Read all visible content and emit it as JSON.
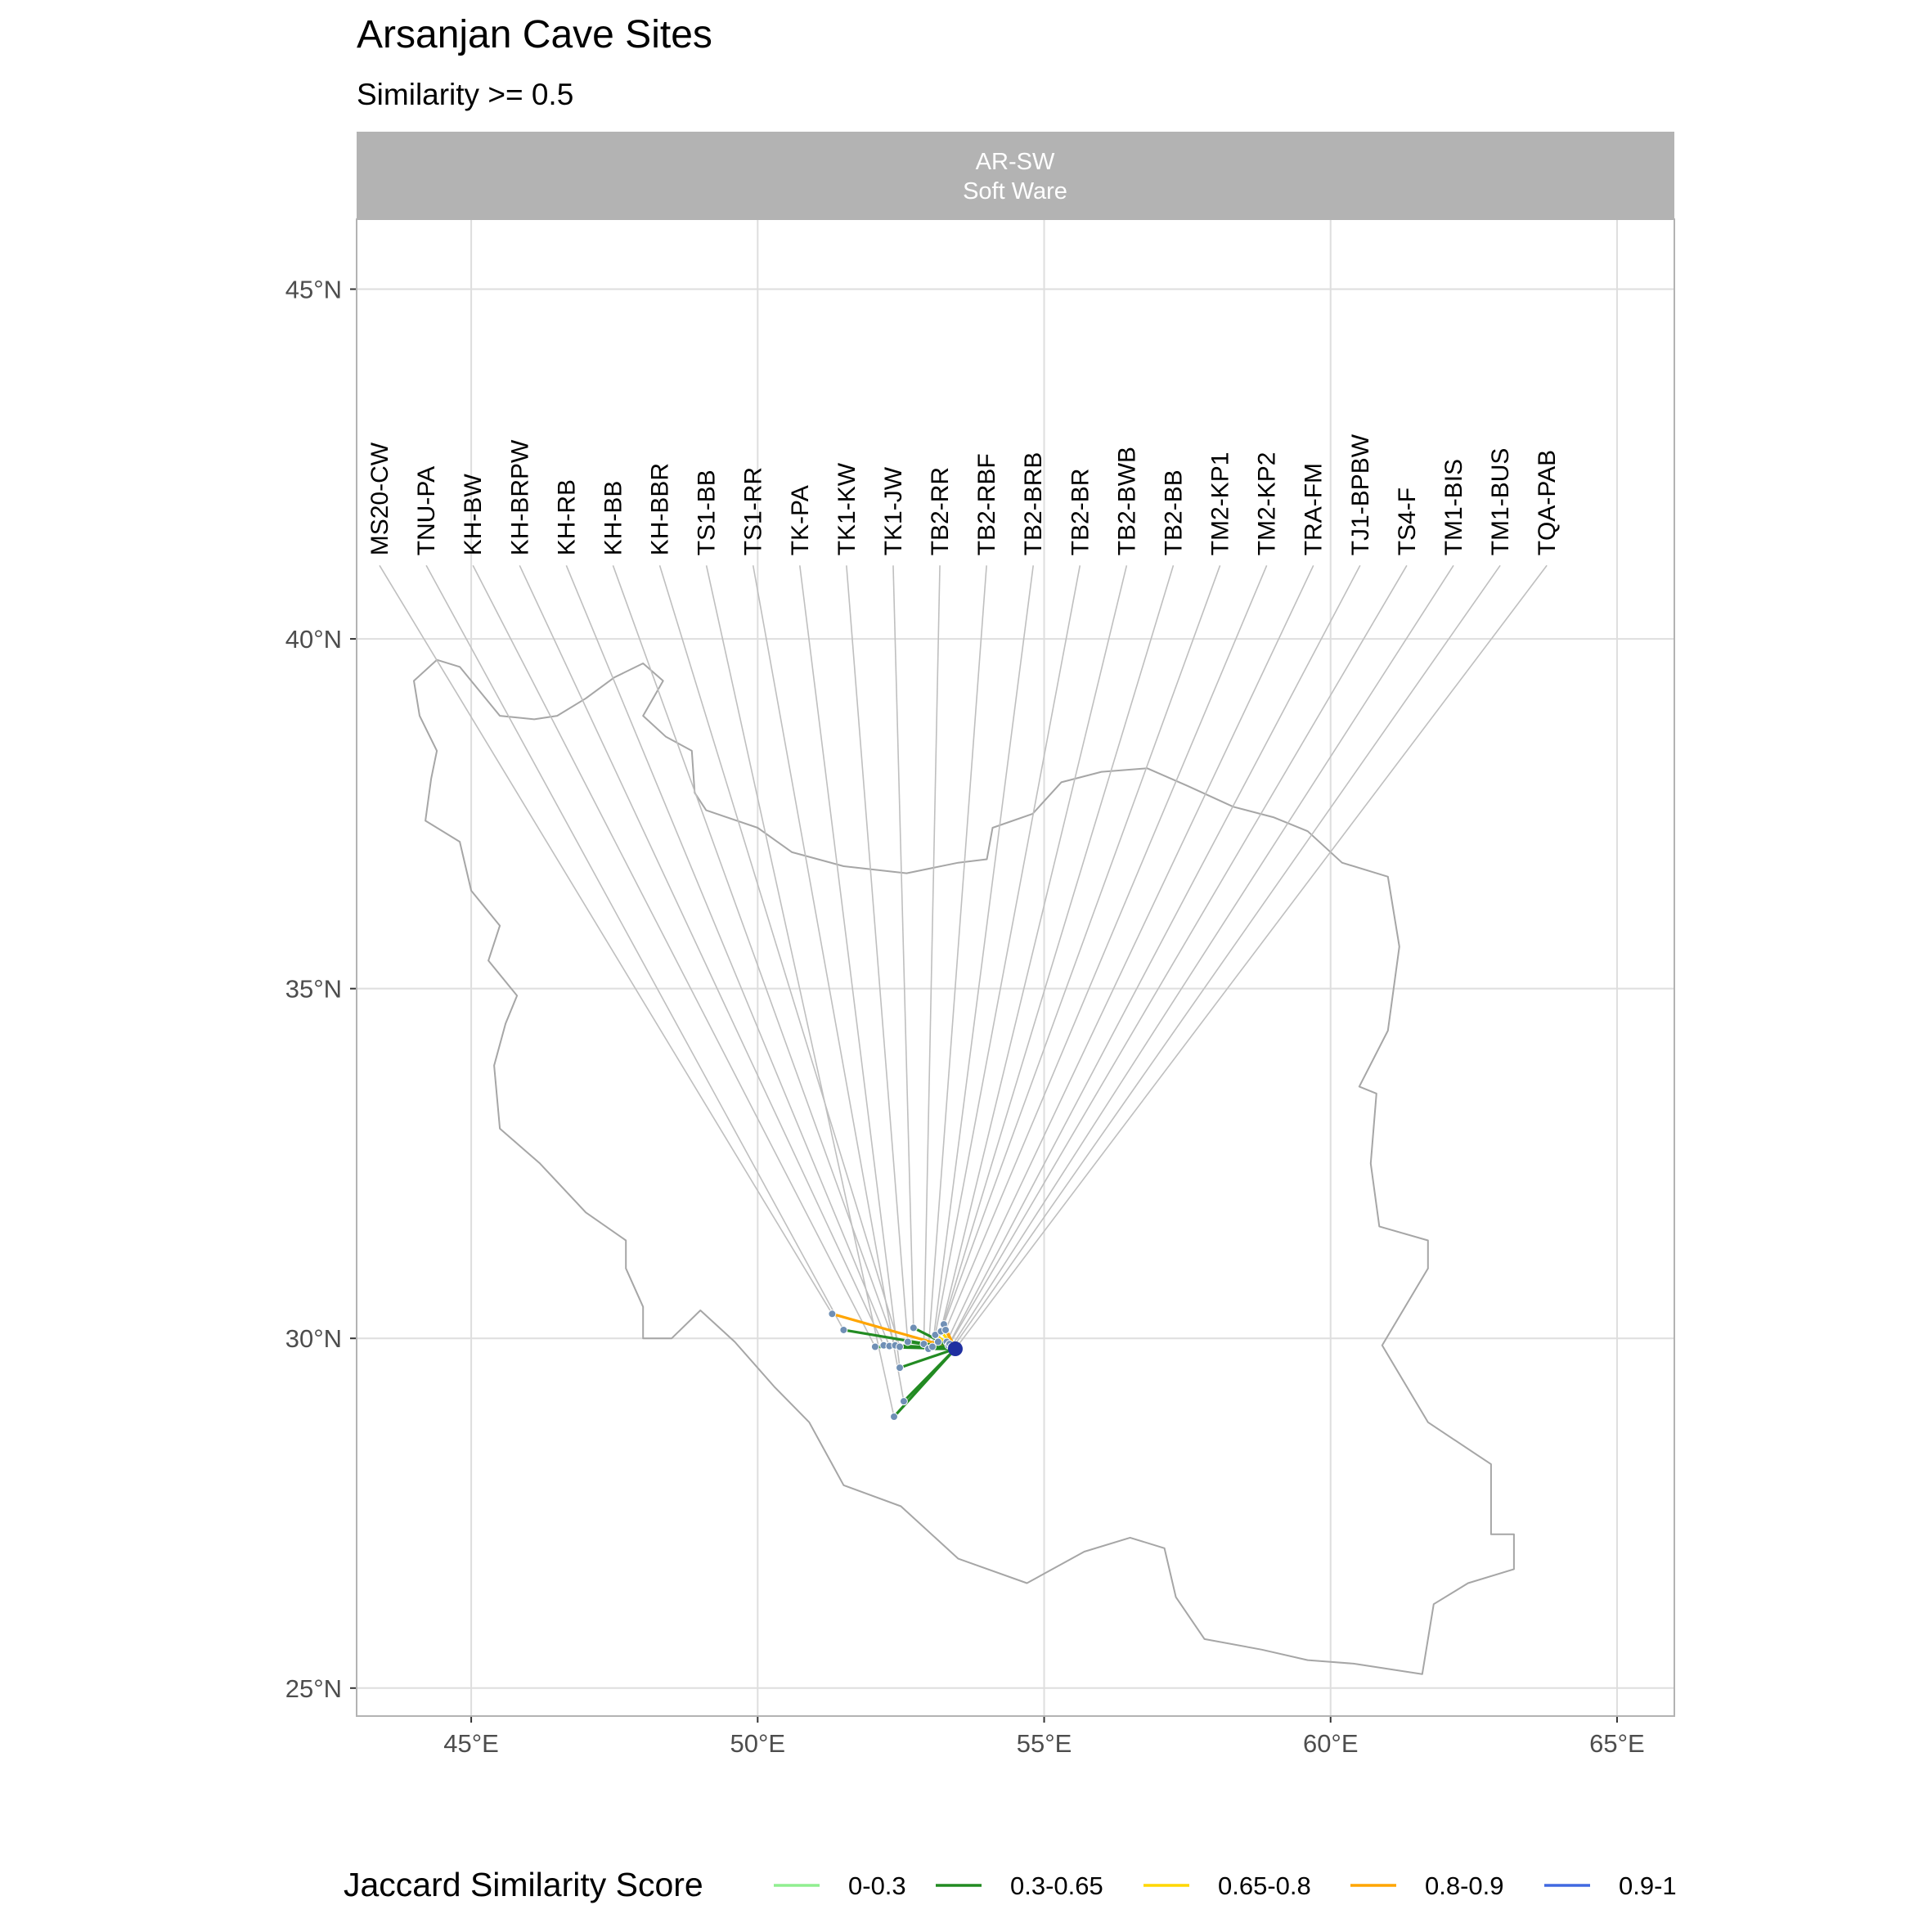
{
  "title": "Arsanjan Cave Sites",
  "subtitle": "Similarity >= 0.5",
  "facet": {
    "line1": "AR-SW",
    "line2": "Soft Ware"
  },
  "colors": {
    "panel_bg": "#ffffff",
    "panel_border": "#b3b3b3",
    "strip_bg": "#b3b3b3",
    "gridline": "#dedede",
    "country_outline": "#a6a6a6",
    "leader_line": "#bfbfbf",
    "site_point": "#6f8fb5",
    "focal_point": "#1f2fa0"
  },
  "chart_data": {
    "type": "map",
    "projection": "equirectangular",
    "xlim": [
      43.0,
      66.0
    ],
    "ylim": [
      24.6,
      46.0
    ],
    "x_ticks": [
      {
        "value": 45,
        "label": "45°E"
      },
      {
        "value": 50,
        "label": "50°E"
      },
      {
        "value": 55,
        "label": "55°E"
      },
      {
        "value": 60,
        "label": "60°E"
      },
      {
        "value": 65,
        "label": "65°E"
      }
    ],
    "y_ticks": [
      {
        "value": 25,
        "label": "25°N"
      },
      {
        "value": 30,
        "label": "30°N"
      },
      {
        "value": 35,
        "label": "35°N"
      },
      {
        "value": 40,
        "label": "40°N"
      },
      {
        "value": 45,
        "label": "45°N"
      }
    ],
    "grid": true,
    "focal_site": {
      "lon": 53.45,
      "lat": 29.85
    },
    "legend": {
      "title": "Jaccard Similarity Score",
      "position": "bottom",
      "items": [
        {
          "label": "0-0.3",
          "color": "#90ee90"
        },
        {
          "label": "0.3-0.65",
          "color": "#228b22"
        },
        {
          "label": "0.65-0.8",
          "color": "#ffd700"
        },
        {
          "label": "0.8-0.9",
          "color": "#ffa500"
        },
        {
          "label": "0.9-1",
          "color": "#4169e1"
        }
      ]
    },
    "label_row": {
      "lat": 41.05,
      "lon_start": 43.4,
      "lon_step": 0.815
    },
    "sites": [
      {
        "name": "MS20-CW",
        "lon": 51.3,
        "lat": 30.35,
        "score_bin": "0.8-0.9"
      },
      {
        "name": "TNU-PA",
        "lon": 51.5,
        "lat": 30.12,
        "score_bin": "0.3-0.65"
      },
      {
        "name": "KH-BW",
        "lon": 52.05,
        "lat": 29.88,
        "score_bin": "0.3-0.65"
      },
      {
        "name": "KH-BRPW",
        "lon": 52.2,
        "lat": 29.9,
        "score_bin": "0.3-0.65"
      },
      {
        "name": "KH-RB",
        "lon": 52.3,
        "lat": 29.89,
        "score_bin": "0.3-0.65"
      },
      {
        "name": "KH-BB",
        "lon": 52.4,
        "lat": 29.9,
        "score_bin": "0.3-0.65"
      },
      {
        "name": "KH-BBR",
        "lon": 52.48,
        "lat": 29.88,
        "score_bin": "0.3-0.65"
      },
      {
        "name": "TS1-BB",
        "lon": 52.38,
        "lat": 28.88,
        "score_bin": "0.3-0.65"
      },
      {
        "name": "TS1-RR",
        "lon": 52.55,
        "lat": 29.1,
        "score_bin": "0.3-0.65"
      },
      {
        "name": "TK-PA",
        "lon": 52.48,
        "lat": 29.58,
        "score_bin": "0.3-0.65"
      },
      {
        "name": "TK1-KW",
        "lon": 52.62,
        "lat": 29.95,
        "score_bin": "0.3-0.65"
      },
      {
        "name": "TK1-JW",
        "lon": 52.72,
        "lat": 30.15,
        "score_bin": "0.3-0.65"
      },
      {
        "name": "TB2-RR",
        "lon": 52.9,
        "lat": 29.92,
        "score_bin": "0.3-0.65"
      },
      {
        "name": "TB2-RBF",
        "lon": 52.98,
        "lat": 29.85,
        "score_bin": "0.3-0.65"
      },
      {
        "name": "TB2-BRB",
        "lon": 53.05,
        "lat": 29.88,
        "score_bin": "0.3-0.65"
      },
      {
        "name": "TB2-BR",
        "lon": 53.1,
        "lat": 30.05,
        "score_bin": "0.65-0.8"
      },
      {
        "name": "TB2-BWB",
        "lon": 53.15,
        "lat": 29.95,
        "score_bin": "0.3-0.65"
      },
      {
        "name": "TB2-BB",
        "lon": 53.2,
        "lat": 30.1,
        "score_bin": "0.65-0.8"
      },
      {
        "name": "TM2-KP1",
        "lon": 53.25,
        "lat": 30.2,
        "score_bin": "0.8-0.9"
      },
      {
        "name": "TM2-KP2",
        "lon": 53.28,
        "lat": 30.12,
        "score_bin": "0.8-0.9"
      },
      {
        "name": "TRA-FM",
        "lon": 53.3,
        "lat": 29.95,
        "score_bin": "0.3-0.65"
      },
      {
        "name": "TJ1-BPBW",
        "lon": 53.33,
        "lat": 29.9,
        "score_bin": "0.3-0.65"
      },
      {
        "name": "TS4-F",
        "lon": 53.35,
        "lat": 29.92,
        "score_bin": "0.3-0.65"
      },
      {
        "name": "TM1-BIS",
        "lon": 53.38,
        "lat": 29.88,
        "score_bin": "0.3-0.65"
      },
      {
        "name": "TM1-BUS",
        "lon": 53.4,
        "lat": 29.86,
        "score_bin": "0.3-0.65"
      },
      {
        "name": "TQA-PAB",
        "lon": 53.45,
        "lat": 29.85,
        "score_bin": "0.9-1"
      }
    ],
    "country_outline": [
      [
        44.0,
        39.4
      ],
      [
        44.4,
        39.7
      ],
      [
        44.8,
        39.6
      ],
      [
        45.0,
        39.4
      ],
      [
        45.5,
        38.9
      ],
      [
        46.1,
        38.85
      ],
      [
        46.5,
        38.9
      ],
      [
        47.0,
        39.15
      ],
      [
        47.5,
        39.45
      ],
      [
        48.0,
        39.65
      ],
      [
        48.35,
        39.4
      ],
      [
        48.0,
        38.9
      ],
      [
        48.4,
        38.6
      ],
      [
        48.85,
        38.4
      ],
      [
        48.9,
        37.8
      ],
      [
        49.1,
        37.55
      ],
      [
        50.0,
        37.3
      ],
      [
        50.6,
        36.95
      ],
      [
        51.5,
        36.75
      ],
      [
        52.6,
        36.65
      ],
      [
        53.5,
        36.8
      ],
      [
        54.0,
        36.85
      ],
      [
        54.1,
        37.3
      ],
      [
        54.8,
        37.5
      ],
      [
        55.3,
        37.95
      ],
      [
        56.0,
        38.1
      ],
      [
        56.8,
        38.15
      ],
      [
        57.5,
        37.9
      ],
      [
        58.3,
        37.6
      ],
      [
        59.0,
        37.45
      ],
      [
        59.6,
        37.25
      ],
      [
        60.2,
        36.8
      ],
      [
        61.0,
        36.6
      ],
      [
        61.2,
        35.6
      ],
      [
        61.0,
        34.4
      ],
      [
        60.5,
        33.6
      ],
      [
        60.8,
        33.5
      ],
      [
        60.7,
        32.5
      ],
      [
        60.85,
        31.6
      ],
      [
        61.7,
        31.4
      ],
      [
        61.7,
        31.0
      ],
      [
        60.9,
        29.9
      ],
      [
        61.7,
        28.8
      ],
      [
        62.8,
        28.2
      ],
      [
        62.8,
        27.2
      ],
      [
        63.2,
        27.2
      ],
      [
        63.2,
        26.7
      ],
      [
        62.4,
        26.5
      ],
      [
        61.8,
        26.2
      ],
      [
        61.6,
        25.2
      ],
      [
        60.4,
        25.35
      ],
      [
        59.6,
        25.4
      ],
      [
        58.8,
        25.55
      ],
      [
        57.8,
        25.7
      ],
      [
        57.3,
        26.3
      ],
      [
        57.1,
        27.0
      ],
      [
        56.5,
        27.15
      ],
      [
        55.7,
        26.95
      ],
      [
        54.7,
        26.5
      ],
      [
        53.5,
        26.85
      ],
      [
        52.5,
        27.6
      ],
      [
        51.5,
        27.9
      ],
      [
        50.9,
        28.8
      ],
      [
        50.3,
        29.3
      ],
      [
        49.6,
        29.95
      ],
      [
        49.0,
        30.4
      ],
      [
        48.5,
        30.0
      ],
      [
        48.0,
        30.0
      ],
      [
        48.0,
        30.45
      ],
      [
        47.7,
        31.0
      ],
      [
        47.7,
        31.4
      ],
      [
        47.0,
        31.8
      ],
      [
        46.2,
        32.5
      ],
      [
        45.5,
        33.0
      ],
      [
        45.4,
        33.9
      ],
      [
        45.6,
        34.5
      ],
      [
        45.8,
        34.9
      ],
      [
        45.3,
        35.4
      ],
      [
        45.5,
        35.9
      ],
      [
        45.0,
        36.4
      ],
      [
        44.8,
        37.1
      ],
      [
        44.2,
        37.4
      ],
      [
        44.3,
        38.0
      ],
      [
        44.4,
        38.4
      ],
      [
        44.1,
        38.9
      ],
      [
        44.0,
        39.4
      ]
    ]
  }
}
